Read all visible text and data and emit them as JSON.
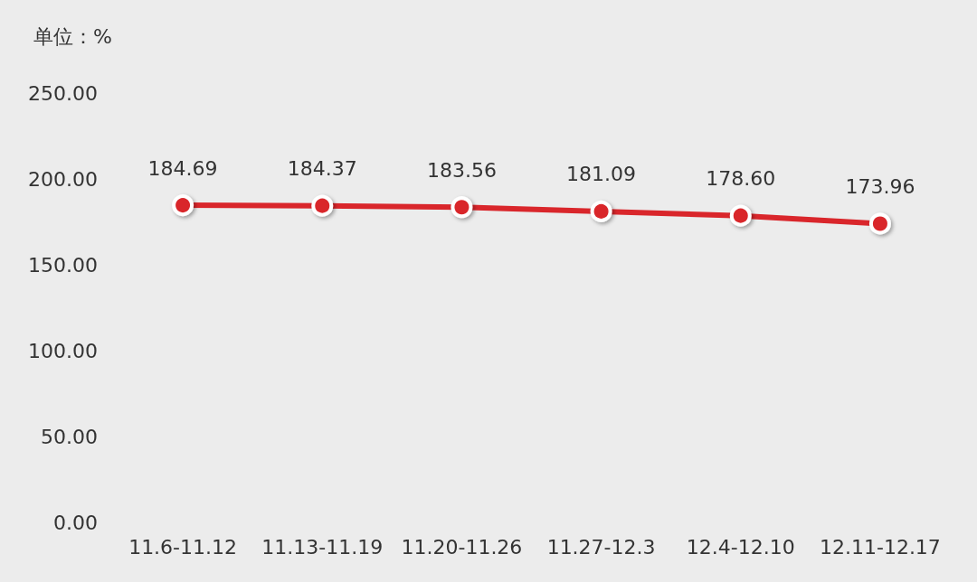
{
  "chart_data": {
    "type": "line",
    "ylabel": "单位：%",
    "categories": [
      "11.6-11.12",
      "11.13-11.19",
      "11.20-11.26",
      "11.27-12.3",
      "12.4-12.10",
      "12.11-12.17"
    ],
    "series": [
      {
        "color": "#d9262b",
        "values": [
          184.69,
          184.37,
          183.56,
          181.09,
          178.6,
          173.96
        ],
        "value_labels": [
          "184.69",
          "184.37",
          "183.56",
          "181.09",
          "178.60",
          "173.96"
        ]
      }
    ],
    "ylim": [
      0,
      250
    ],
    "yticks": [
      {
        "value": 0,
        "label": "0.00"
      },
      {
        "value": 50,
        "label": "50.00"
      },
      {
        "value": 100,
        "label": "100.00"
      },
      {
        "value": 150,
        "label": "150.00"
      },
      {
        "value": 200,
        "label": "200.00"
      },
      {
        "value": 250,
        "label": "250.00"
      }
    ],
    "grid": false,
    "marker": "circle",
    "line_style": "solid"
  }
}
